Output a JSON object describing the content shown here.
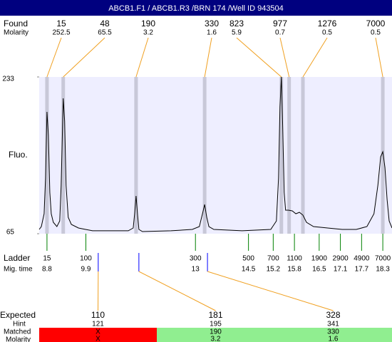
{
  "header": {
    "title": "ABCB1.F1 / ABCB1.R3 /BRN 174 /Well ID 943504"
  },
  "chart_data": {
    "type": "electropherogram",
    "y_label": "Fluo.",
    "ylim": [
      65,
      233
    ],
    "yticks": [
      65,
      233
    ],
    "xlim": [
      8.58,
      18.56
    ],
    "trace": {
      "color": "#000000",
      "x": [
        8.58,
        8.64,
        8.72,
        8.76,
        8.8,
        8.84,
        8.88,
        8.92,
        8.98,
        9.08,
        9.16,
        9.2,
        9.26,
        9.3,
        9.34,
        9.4,
        9.49,
        9.69,
        9.89,
        10.09,
        10.49,
        11.1,
        11.24,
        11.28,
        11.32,
        11.36,
        11.4,
        11.5,
        12.31,
        12.91,
        13.11,
        13.2,
        13.26,
        13.32,
        13.38,
        13.52,
        14.32,
        15.13,
        15.29,
        15.35,
        15.39,
        15.43,
        15.47,
        15.51,
        15.55,
        15.63,
        15.74,
        15.84,
        15.94,
        16.04,
        16.14,
        16.34,
        16.74,
        17.15,
        17.55,
        17.85,
        18.05,
        18.16,
        18.24,
        18.3,
        18.36,
        18.42,
        18.48,
        18.56
      ],
      "y": [
        69.6,
        72.6,
        86.4,
        124.6,
        195.6,
        170.4,
        109.3,
        86.4,
        77.2,
        72.6,
        78.7,
        116.9,
        210.1,
        185.6,
        116.9,
        82.6,
        74.9,
        71.1,
        69.6,
        68.1,
        68.1,
        68.1,
        71.1,
        86.4,
        105.5,
        86.4,
        69.6,
        67.3,
        68.1,
        69.6,
        72.6,
        86.4,
        96.3,
        82.6,
        72.6,
        69.6,
        68.1,
        69.6,
        78.7,
        124.6,
        200.9,
        233,
        178,
        109.3,
        90.2,
        90.2,
        89.4,
        86.4,
        87.9,
        84.9,
        77.2,
        72.6,
        71.1,
        69.6,
        69.6,
        72.6,
        86.4,
        116.9,
        147.5,
        152.8,
        136,
        101.7,
        78.7,
        71.1
      ]
    },
    "band_color": "#c8c8d8",
    "found": {
      "label": "Found",
      "molarity_label": "Molarity",
      "sizes": [
        15,
        48,
        190,
        330,
        823,
        977,
        1276,
        7000
      ],
      "molarity": [
        252.5,
        65.5,
        3.2,
        1.6,
        5.9,
        0.7,
        0.5,
        0.5
      ],
      "mig_time": [
        8.8,
        9.26,
        11.32,
        13.26,
        15.43,
        15.65,
        16.04,
        18.3
      ]
    },
    "ladder": {
      "label": "Ladder",
      "time_label": "Mig. time",
      "color": "#008000",
      "sizes": [
        15,
        100,
        300,
        500,
        700,
        1100,
        1900,
        2900,
        4900,
        7000
      ],
      "mig_time": [
        8.8,
        9.9,
        13,
        14.5,
        15.2,
        15.8,
        16.5,
        17.1,
        17.7,
        18.3
      ]
    },
    "expected": {
      "label": "Expected",
      "hint_label": "Hint",
      "matched_label": "Matched",
      "molarity_label": "Molarity",
      "color": "#0000ff",
      "sizes": [
        110,
        181,
        328
      ],
      "mig_time": [
        10.25,
        11.4,
        13.34
      ],
      "hint": [
        121,
        195,
        341
      ],
      "matched": [
        "X",
        190,
        330
      ],
      "molarity": [
        "X",
        3.2,
        1.6
      ],
      "matched_colors": [
        "#ff0000",
        "#90ee90",
        "#90ee90"
      ]
    }
  }
}
